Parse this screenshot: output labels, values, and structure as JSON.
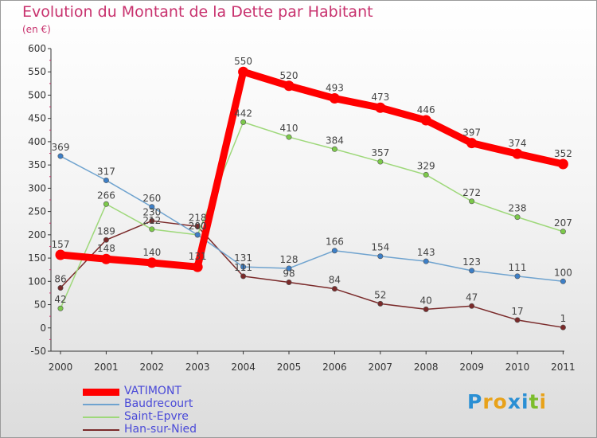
{
  "title": "Evolution du Montant de la Dette par Habitant",
  "subtitle": "(en €)",
  "logo": {
    "text": "Proxiti",
    "colors": [
      "#2a8fd4",
      "#e8a21a",
      "#e8a21a",
      "#2a8fd4",
      "#2a8fd4",
      "#7cbd2c",
      "#e8a21a"
    ]
  },
  "chart_data": {
    "type": "line",
    "title": "Evolution du Montant de la Dette par Habitant",
    "ylabel": "(en €)",
    "xlabel": "",
    "ylim": [
      -50,
      600
    ],
    "yticks": [
      -50,
      0,
      50,
      100,
      150,
      200,
      250,
      300,
      350,
      400,
      450,
      500,
      550,
      600
    ],
    "grid": false,
    "legend": "bottom-left",
    "x": [
      "2000",
      "2001",
      "2002",
      "2003",
      "2004",
      "2005",
      "2006",
      "2007",
      "2008",
      "2009",
      "2010",
      "2011"
    ],
    "series": [
      {
        "name": "VATIMONT",
        "color": "#ff0000",
        "marker": "#ff0000",
        "values": [
          157,
          148,
          140,
          131,
          550,
          520,
          493,
          473,
          446,
          397,
          374,
          352
        ]
      },
      {
        "name": "Baudrecourt",
        "color": "#6fa3cf",
        "marker": "#3d7fc7",
        "values": [
          369,
          317,
          260,
          200,
          131,
          128,
          166,
          154,
          143,
          123,
          111,
          100
        ]
      },
      {
        "name": "Saint-Epvre",
        "color": "#9ed87a",
        "marker": "#7cc94a",
        "values": [
          42,
          266,
          212,
          200,
          442,
          410,
          384,
          357,
          329,
          272,
          238,
          207
        ]
      },
      {
        "name": "Han-sur-Nied",
        "color": "#7a2a2a",
        "marker": "#7a2a2a",
        "values": [
          86,
          189,
          230,
          218,
          111,
          98,
          84,
          52,
          40,
          47,
          17,
          1
        ]
      }
    ]
  }
}
